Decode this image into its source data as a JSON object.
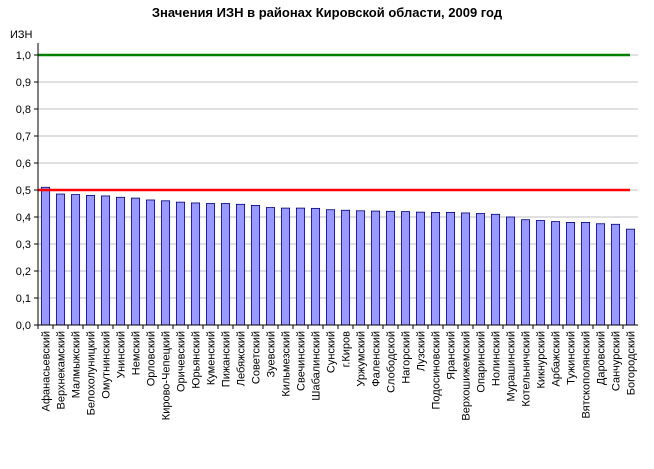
{
  "chart_data": {
    "type": "bar",
    "title": "Значения ИЗН в районах Кировской области, 2009 год",
    "ylabel": "ИЗН",
    "xlabel": "",
    "ylim": [
      0,
      1
    ],
    "yticks": [
      "0,0",
      "0,1",
      "0,2",
      "0,3",
      "0,4",
      "0,5",
      "0,6",
      "0,7",
      "0,8",
      "0,9",
      "1,0"
    ],
    "grid": true,
    "legend": "none",
    "categories": [
      "Афанасьевский",
      "Верхнекамский",
      "Малмыжский",
      "Белохолуницкий",
      "Омутнинский",
      "Унинский",
      "Немский",
      "Орловский",
      "Кирово-Чепецкий",
      "Оричевский",
      "Юрьянский",
      "Куменский",
      "Пижанский",
      "Лебяжский",
      "Советский",
      "Зуевский",
      "Кильмезский",
      "Свечинский",
      "Шабалинский",
      "Сунский",
      "г.Киров",
      "Уржумский",
      "Фаленский",
      "Слободской",
      "Нагорский",
      "Лузский",
      "Подосиновский",
      "Яранский",
      "Верхошижемский",
      "Опаринский",
      "Нолинский",
      "Мурашинский",
      "Котельничский",
      "Кикнурский",
      "Арбажский",
      "Тужинский",
      "Вятскополянский",
      "Даровский",
      "Санчурский",
      "Богородский"
    ],
    "values": [
      0.51,
      0.485,
      0.483,
      0.48,
      0.478,
      0.473,
      0.47,
      0.463,
      0.46,
      0.455,
      0.452,
      0.45,
      0.45,
      0.447,
      0.443,
      0.435,
      0.433,
      0.433,
      0.432,
      0.427,
      0.425,
      0.423,
      0.422,
      0.421,
      0.42,
      0.418,
      0.417,
      0.417,
      0.415,
      0.413,
      0.41,
      0.4,
      0.39,
      0.387,
      0.383,
      0.38,
      0.38,
      0.375,
      0.373,
      0.355
    ],
    "reference_lines": [
      {
        "value": 1.0,
        "color": "#008000"
      },
      {
        "value": 0.5,
        "color": "#ff0000"
      }
    ],
    "bar_color": "#9999ff",
    "bar_border": "#000080"
  }
}
